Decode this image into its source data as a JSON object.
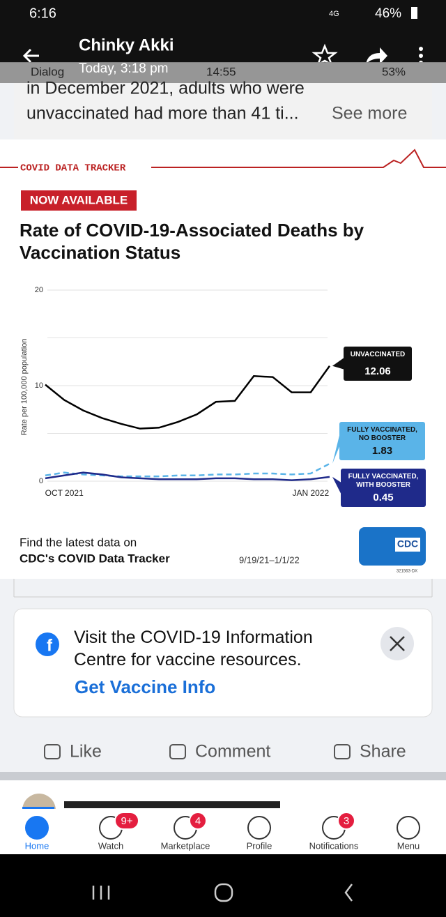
{
  "status_bar": {
    "time": "6:16",
    "network": "4G",
    "battery": "46%"
  },
  "header": {
    "title": "Chinky Akki",
    "subtitle": "Today, 3:18 pm"
  },
  "overlay_status": {
    "carrier": "Dialog",
    "time": "14:55",
    "battery": "53%"
  },
  "post": {
    "line1": "in December 2021, adults who were",
    "line2": "unvaccinated had more than 41 ti...",
    "see_more": "See more"
  },
  "chart_data": {
    "type": "line",
    "banner": "COVID DATA TRACKER",
    "badge": "NOW AVAILABLE",
    "title": "Rate of COVID-19-Associated Deaths by Vaccination Status",
    "ylabel": "Rate per 100,000 population",
    "categories": [
      null,
      "OCT 2021",
      null,
      null,
      null,
      null,
      null,
      null,
      null,
      null,
      null,
      null,
      null,
      null,
      "JAN 2022",
      null
    ],
    "ylim": [
      0,
      20
    ],
    "yticks": [
      0,
      10,
      20
    ],
    "grid": [
      0,
      5,
      10,
      15,
      20
    ],
    "series": [
      {
        "name": "UNVACCINATED",
        "color": "#000000",
        "style": "solid",
        "values": [
          10.1,
          8.5,
          7.4,
          6.6,
          6.0,
          5.5,
          5.6,
          6.2,
          7.0,
          8.3,
          8.4,
          11.0,
          10.9,
          9.3,
          9.3,
          12.06
        ]
      },
      {
        "name": "FULLY VACCINATED, NO BOOSTER",
        "color": "#5ab4e8",
        "style": "dashed",
        "values": [
          0.6,
          0.9,
          0.7,
          0.6,
          0.5,
          0.5,
          0.5,
          0.6,
          0.6,
          0.7,
          0.7,
          0.8,
          0.8,
          0.7,
          0.8,
          1.83
        ]
      },
      {
        "name": "FULLY VACCINATED, WITH BOOSTER",
        "color": "#1f2a8a",
        "style": "solid",
        "values": [
          0.3,
          0.6,
          0.9,
          0.7,
          0.4,
          0.3,
          0.2,
          0.2,
          0.2,
          0.3,
          0.3,
          0.2,
          0.2,
          0.1,
          0.2,
          0.45
        ]
      }
    ],
    "footer_line1": "Find the latest data on",
    "footer_line2": "CDC's COVID Data Tracker",
    "date_range": "9/19/21–1/1/22",
    "logo": "CDC",
    "code": "321563-DX"
  },
  "info_card": {
    "text": "Visit the COVID-19 Information Centre for vaccine resources.",
    "link": "Get Vaccine Info"
  },
  "actions": [
    "Like",
    "Comment",
    "Share"
  ],
  "nav": [
    {
      "label": "Home"
    },
    {
      "label": "Watch",
      "badge": "9+"
    },
    {
      "label": "Marketplace",
      "badge": "4"
    },
    {
      "label": "Profile"
    },
    {
      "label": "Notifications",
      "badge": "3"
    },
    {
      "label": "Menu"
    }
  ]
}
